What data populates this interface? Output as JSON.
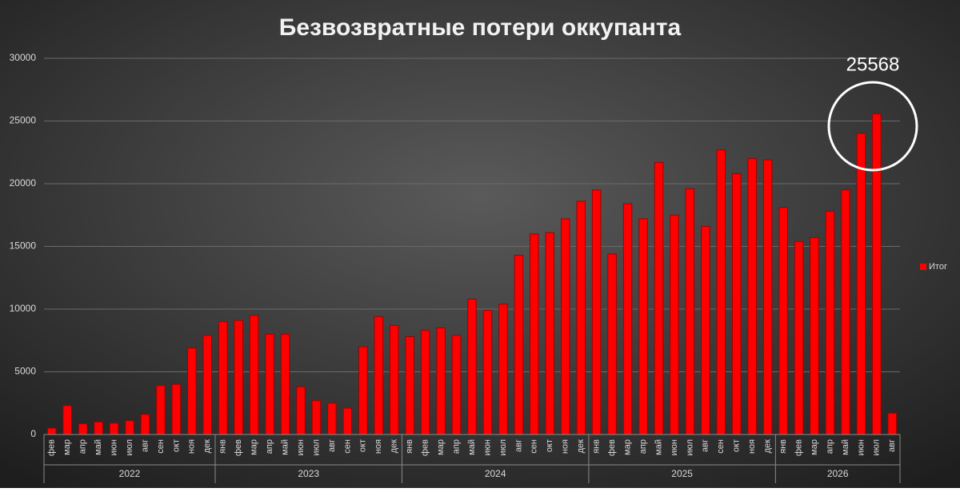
{
  "chart_data": {
    "type": "bar",
    "title": "Безвозвратные потери оккупанта",
    "groups": [
      {
        "label": "2022",
        "categories": [
          "фев",
          "мар",
          "апр",
          "май",
          "июн",
          "июл",
          "авг",
          "сен",
          "окт",
          "ноя",
          "дек"
        ]
      },
      {
        "label": "2023",
        "categories": [
          "янв",
          "фев",
          "мар",
          "апр",
          "май",
          "июн",
          "июл",
          "авг",
          "сен",
          "окт",
          "ноя",
          "дек"
        ]
      },
      {
        "label": "2024",
        "categories": [
          "янв",
          "фев",
          "мар",
          "апр",
          "май",
          "июн",
          "июл",
          "авг",
          "сен",
          "окт",
          "ноя",
          "дек"
        ]
      },
      {
        "label": "2025",
        "categories": [
          "янв",
          "фев",
          "мар",
          "апр",
          "май",
          "июн",
          "июл",
          "авг",
          "сен",
          "окт",
          "ноя",
          "дек"
        ]
      },
      {
        "label": "2026",
        "categories": [
          "янв",
          "фев",
          "мар",
          "апр",
          "май",
          "июн",
          "июл",
          "авг"
        ]
      }
    ],
    "series": [
      {
        "name": "Итог",
        "color": "#ff0000",
        "values": [
          500,
          2300,
          850,
          1000,
          900,
          1100,
          1600,
          3900,
          4000,
          6900,
          7900,
          9000,
          9100,
          9500,
          8000,
          8000,
          3800,
          2700,
          2500,
          2100,
          7000,
          9400,
          8700,
          7800,
          8300,
          8500,
          7900,
          10800,
          9900,
          10400,
          14300,
          16000,
          16100,
          17200,
          18600,
          19500,
          14400,
          18400,
          17200,
          21700,
          17500,
          19600,
          16600,
          22700,
          20800,
          22000,
          21900,
          18100,
          15400,
          15700,
          17800,
          19500,
          24000,
          25568,
          1700
        ]
      }
    ],
    "annotation": "25568",
    "ylim": [
      0,
      30000
    ],
    "yticks": [
      0,
      5000,
      10000,
      15000,
      20000,
      25000,
      30000
    ],
    "grid": true,
    "legend": "right"
  }
}
